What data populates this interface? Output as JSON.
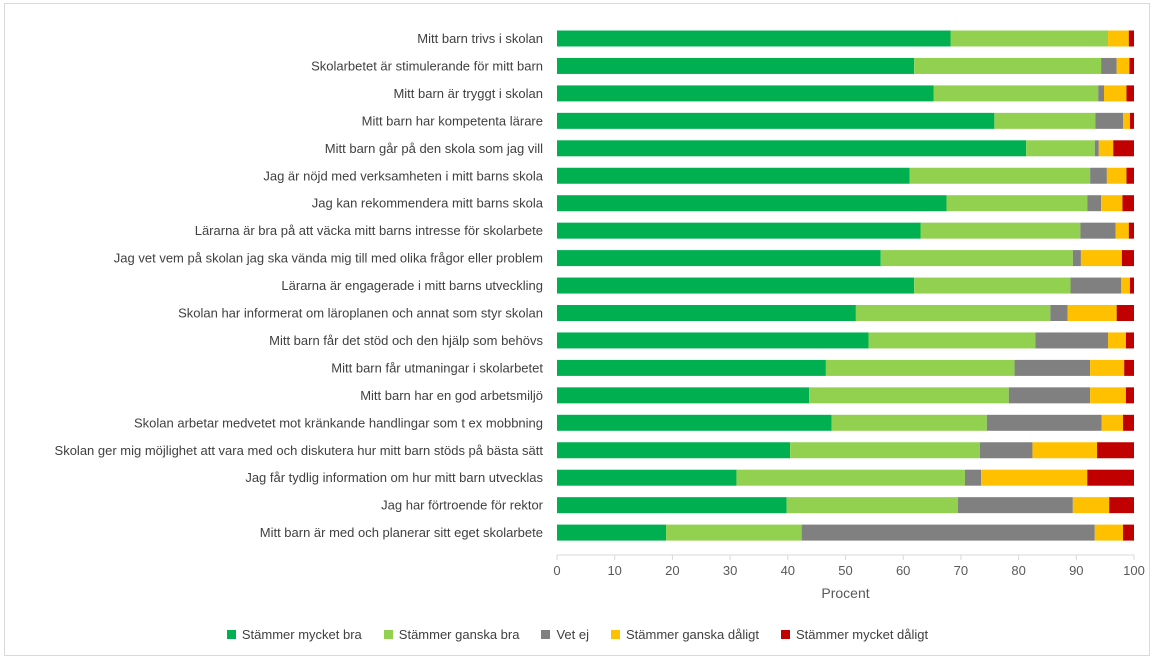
{
  "chart_data": {
    "type": "bar",
    "orientation": "horizontal",
    "stacked": true,
    "xlabel": "Procent",
    "xlim": [
      0,
      100
    ],
    "xticks": [
      0,
      10,
      20,
      30,
      40,
      50,
      60,
      70,
      80,
      90,
      100
    ],
    "grid": false,
    "legend_position": "bottom",
    "categories": [
      "Mitt barn trivs i skolan",
      "Skolarbetet är stimulerande för mitt barn",
      "Mitt barn är tryggt i skolan",
      "Mitt barn har kompetenta lärare",
      "Mitt barn går på den skola som jag vill",
      "Jag är nöjd med verksamheten i mitt barns skola",
      "Jag kan rekommendera mitt barns skola",
      "Lärarna är bra på att väcka mitt barns intresse för skolarbete",
      "Jag vet vem på skolan jag ska vända mig till med olika frågor eller problem",
      "Lärarna är engagerade i mitt barns utveckling",
      "Skolan har informerat om läroplanen och annat som styr skolan",
      "Mitt barn får det stöd och den hjälp som behövs",
      "Mitt barn får utmaningar i skolarbetet",
      "Mitt barn har en god arbetsmiljö",
      "Skolan arbetar medvetet mot kränkande handlingar som t ex mobbning",
      "Skolan ger mig möjlighet att vara med och diskutera hur mitt barn stöds på bästa sätt",
      "Jag får tydlig information om hur mitt barn utvecklas",
      "Jag har förtroende för rektor",
      "Mitt barn är med och planerar sitt eget skolarbete"
    ],
    "series": [
      {
        "name": "Stämmer mycket bra",
        "color": "#00b050",
        "values": [
          68.2,
          61.9,
          65.3,
          75.8,
          81.3,
          61.1,
          67.5,
          63.0,
          56.1,
          61.9,
          51.8,
          54.0,
          46.6,
          43.7,
          47.6,
          40.4,
          31.1,
          39.8,
          18.9
        ]
      },
      {
        "name": "Stämmer ganska bra",
        "color": "#92d050",
        "values": [
          27.3,
          32.4,
          28.5,
          17.5,
          11.9,
          31.3,
          24.4,
          27.7,
          33.3,
          27.1,
          33.7,
          28.9,
          32.7,
          34.6,
          26.9,
          32.9,
          39.6,
          29.7,
          23.5
        ]
      },
      {
        "name": "Vet ej",
        "color": "#808080",
        "values": [
          0.0,
          2.7,
          1.0,
          4.8,
          0.7,
          2.9,
          2.4,
          6.1,
          1.4,
          8.8,
          3.0,
          12.6,
          13.1,
          14.1,
          19.9,
          9.1,
          2.8,
          19.9,
          50.8
        ]
      },
      {
        "name": "Stämmer ganska dåligt",
        "color": "#ffc000",
        "values": [
          3.6,
          2.2,
          3.9,
          1.2,
          2.5,
          3.4,
          3.7,
          2.3,
          7.1,
          1.5,
          8.5,
          3.1,
          5.9,
          6.2,
          3.7,
          11.2,
          18.4,
          6.3,
          4.9
        ]
      },
      {
        "name": "Stämmer mycket dåligt",
        "color": "#c00000",
        "values": [
          0.9,
          0.8,
          1.3,
          0.7,
          3.6,
          1.3,
          2.0,
          0.9,
          2.1,
          0.7,
          3.0,
          1.4,
          1.7,
          1.4,
          1.9,
          6.4,
          8.1,
          4.3,
          1.9
        ]
      }
    ]
  }
}
